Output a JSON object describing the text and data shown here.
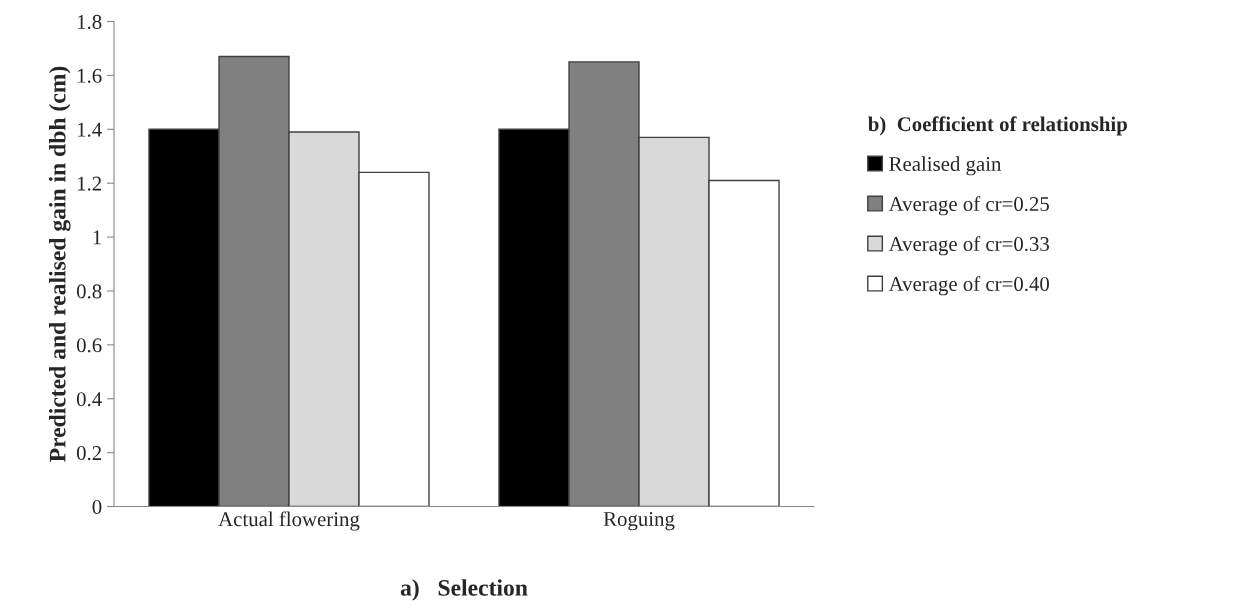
{
  "chart_data": {
    "type": "bar",
    "xlabel": "a)   Selection",
    "ylabel": "Predicted and realised gain in dbh (cm)",
    "legend_title": "b)  Coefficient of relationship",
    "categories": [
      "Actual flowering",
      "Roguing"
    ],
    "series": [
      {
        "name": "Realised gain",
        "color": "#000000",
        "values": [
          1.4,
          1.4
        ]
      },
      {
        "name": "Average of cr=0.25",
        "color": "#808080",
        "values": [
          1.67,
          1.65
        ]
      },
      {
        "name": "Average of cr=0.33",
        "color": "#d9d9d9",
        "values": [
          1.39,
          1.37
        ]
      },
      {
        "name": "Average of cr=0.40",
        "color": "#ffffff",
        "values": [
          1.24,
          1.21
        ]
      }
    ],
    "ylim": [
      0,
      1.8
    ],
    "yticks": [
      0,
      0.2,
      0.4,
      0.6,
      0.8,
      1,
      1.2,
      1.4,
      1.6,
      1.8
    ],
    "grid": false,
    "legend": "right"
  }
}
